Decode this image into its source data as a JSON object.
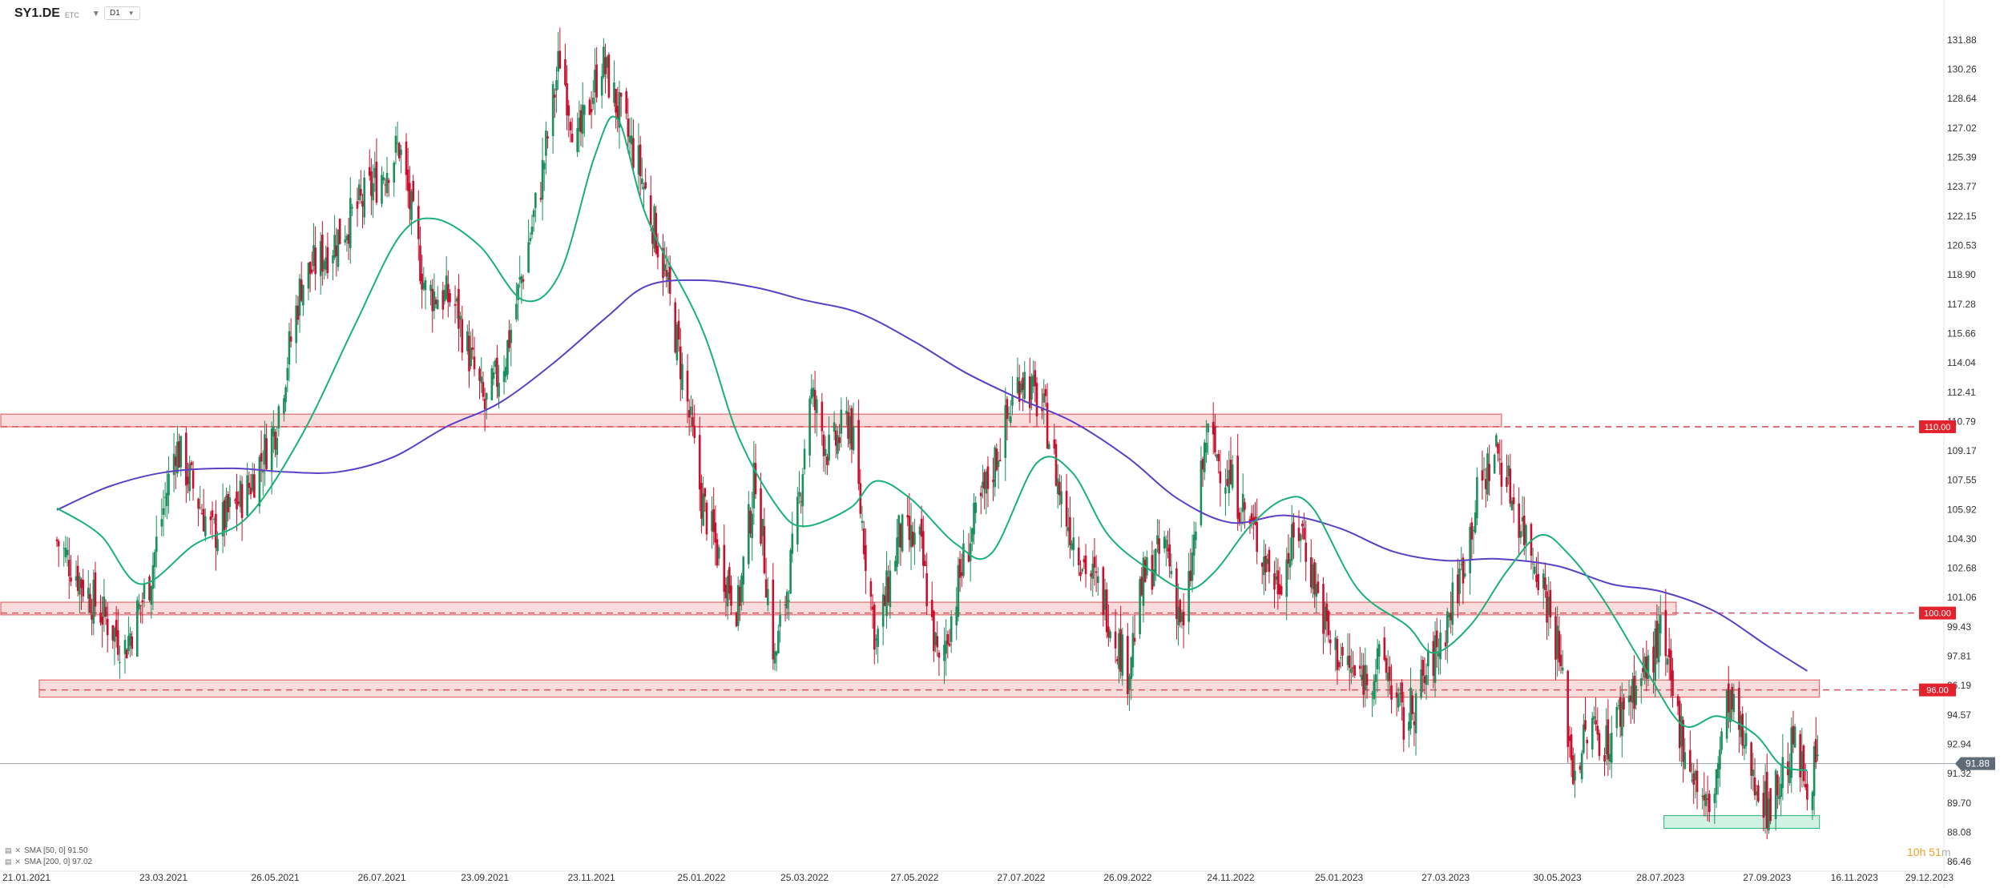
{
  "header": {
    "symbol": "SY1.DE",
    "exchange": "ETC",
    "timeframe": "D1"
  },
  "indicators": [
    {
      "label": "SMA [50, 0] 91.50",
      "color": "#1ab07a"
    },
    {
      "label": "SMA [200, 0] 97.02",
      "color": "#5b3fc4"
    }
  ],
  "countdown": {
    "main": "10h 51",
    "unit": "m"
  },
  "colors": {
    "up": "#1a8f5c",
    "down": "#c8102e",
    "sma50": "#1ab07a",
    "sma200": "#5b3fc4",
    "zone_fill": "#f9d0d2",
    "zone_stroke": "#d9535a",
    "green_zone_fill": "#c6efdd",
    "green_zone_stroke": "#27b37b",
    "level_label": "#e2232e",
    "price_label": "#5f6b77"
  },
  "chart_data": {
    "type": "candlestick",
    "y_axis_ticks": [
      "131.88",
      "130.26",
      "128.64",
      "127.02",
      "125.39",
      "123.77",
      "122.15",
      "120.53",
      "118.90",
      "117.28",
      "115.66",
      "114.04",
      "112.41",
      "110.79",
      "109.17",
      "107.55",
      "105.92",
      "104.30",
      "102.68",
      "101.06",
      "99.43",
      "97.81",
      "96.19",
      "94.57",
      "92.94",
      "91.32",
      "89.70",
      "88.08",
      "86.46"
    ],
    "ylim": [
      86.46,
      131.88
    ],
    "x_axis_labels": [
      "21.01.2021",
      "23.03.2021",
      "26.05.2021",
      "26.07.2021",
      "23.09.2021",
      "23.11.2021",
      "25.01.2022",
      "25.03.2022",
      "27.05.2022",
      "27.07.2022",
      "26.09.2022",
      "24.11.2022",
      "25.01.2023",
      "27.03.2023",
      "30.05.2023",
      "28.07.2023",
      "27.09.2023",
      "16.11.2023",
      "29.12.2023"
    ],
    "x_axis_ticks": [
      "2021-01-21",
      "2021-03-23",
      "2021-05-26",
      "2021-07-26",
      "2021-09-23",
      "2021-11-23",
      "2022-01-25",
      "2022-03-25",
      "2022-05-27",
      "2022-07-27",
      "2022-09-26",
      "2022-11-24",
      "2023-01-25",
      "2023-03-27",
      "2023-05-30",
      "2023-07-28",
      "2023-09-27",
      "2023-11-16",
      "2023-12-29"
    ],
    "last_price": "91.88",
    "close_path": [
      [
        "2021-01-21",
        104.2
      ],
      [
        "2021-02-10",
        101.0
      ],
      [
        "2021-03-01",
        98.3
      ],
      [
        "2021-03-15",
        102.0
      ],
      [
        "2021-03-30",
        109.5
      ],
      [
        "2021-04-20",
        104.5
      ],
      [
        "2021-05-10",
        107.0
      ],
      [
        "2021-05-26",
        110.5
      ],
      [
        "2021-06-10",
        118.5
      ],
      [
        "2021-07-01",
        121.0
      ],
      [
        "2021-07-26",
        124.5
      ],
      [
        "2021-08-05",
        126.0
      ],
      [
        "2021-08-20",
        118.0
      ],
      [
        "2021-09-05",
        117.5
      ],
      [
        "2021-09-23",
        111.5
      ],
      [
        "2021-10-05",
        114.5
      ],
      [
        "2021-10-25",
        124.0
      ],
      [
        "2021-11-05",
        131.0
      ],
      [
        "2021-11-15",
        126.0
      ],
      [
        "2021-11-29",
        130.8
      ],
      [
        "2021-12-10",
        127.5
      ],
      [
        "2021-12-20",
        125.0
      ],
      [
        "2022-01-03",
        119.5
      ],
      [
        "2022-01-15",
        113.0
      ],
      [
        "2022-01-25",
        106.5
      ],
      [
        "2022-02-05",
        103.0
      ],
      [
        "2022-02-15",
        100.5
      ],
      [
        "2022-02-25",
        108.0
      ],
      [
        "2022-03-08",
        97.5
      ],
      [
        "2022-03-20",
        104.5
      ],
      [
        "2022-03-28",
        112.5
      ],
      [
        "2022-04-08",
        109.0
      ],
      [
        "2022-04-20",
        111.0
      ],
      [
        "2022-05-05",
        98.5
      ],
      [
        "2022-05-18",
        104.5
      ],
      [
        "2022-05-30",
        104.0
      ],
      [
        "2022-06-10",
        97.0
      ],
      [
        "2022-06-25",
        103.5
      ],
      [
        "2022-07-10",
        108.0
      ],
      [
        "2022-07-27",
        113.5
      ],
      [
        "2022-08-10",
        111.0
      ],
      [
        "2022-08-20",
        106.0
      ],
      [
        "2022-09-01",
        103.0
      ],
      [
        "2022-09-12",
        101.0
      ],
      [
        "2022-09-26",
        97.0
      ],
      [
        "2022-10-05",
        102.0
      ],
      [
        "2022-10-18",
        104.0
      ],
      [
        "2022-10-28",
        99.0
      ],
      [
        "2022-11-10",
        110.0
      ],
      [
        "2022-11-24",
        107.5
      ],
      [
        "2022-12-08",
        104.5
      ],
      [
        "2022-12-20",
        101.8
      ],
      [
        "2023-01-03",
        105.0
      ],
      [
        "2023-01-20",
        98.5
      ],
      [
        "2023-02-05",
        96.5
      ],
      [
        "2023-02-20",
        97.5
      ],
      [
        "2023-03-03",
        94.0
      ],
      [
        "2023-03-15",
        96.5
      ],
      [
        "2023-03-27",
        99.5
      ],
      [
        "2023-04-05",
        102.5
      ],
      [
        "2023-04-15",
        107.0
      ],
      [
        "2023-04-25",
        109.3
      ],
      [
        "2023-05-08",
        105.5
      ],
      [
        "2023-05-20",
        102.5
      ],
      [
        "2023-05-30",
        98.5
      ],
      [
        "2023-06-08",
        91.5
      ],
      [
        "2023-06-18",
        94.0
      ],
      [
        "2023-06-28",
        93.0
      ],
      [
        "2023-07-08",
        95.5
      ],
      [
        "2023-07-20",
        97.0
      ],
      [
        "2023-07-28",
        99.0
      ],
      [
        "2023-08-05",
        95.0
      ],
      [
        "2023-08-15",
        91.5
      ],
      [
        "2023-08-25",
        89.0
      ],
      [
        "2023-09-05",
        95.5
      ],
      [
        "2023-09-15",
        92.5
      ],
      [
        "2023-09-27",
        89.5
      ],
      [
        "2023-10-05",
        91.0
      ],
      [
        "2023-10-12",
        93.0
      ],
      [
        "2023-10-19",
        91.0
      ],
      [
        "2023-10-26",
        91.88
      ]
    ],
    "candle_seed": 7,
    "sma50_path": [
      [
        "2021-01-21",
        106.0
      ],
      [
        "2021-02-15",
        104.5
      ],
      [
        "2021-03-10",
        101.8
      ],
      [
        "2021-04-10",
        104.0
      ],
      [
        "2021-05-10",
        105.5
      ],
      [
        "2021-06-10",
        110.0
      ],
      [
        "2021-07-10",
        116.0
      ],
      [
        "2021-08-05",
        121.0
      ],
      [
        "2021-08-25",
        122.0
      ],
      [
        "2021-09-20",
        120.5
      ],
      [
        "2021-10-15",
        117.5
      ],
      [
        "2021-11-05",
        119.0
      ],
      [
        "2021-11-25",
        125.5
      ],
      [
        "2021-12-08",
        127.5
      ],
      [
        "2021-12-25",
        122.0
      ],
      [
        "2022-01-25",
        116.0
      ],
      [
        "2022-02-15",
        110.0
      ],
      [
        "2022-03-10",
        106.0
      ],
      [
        "2022-03-25",
        105.0
      ],
      [
        "2022-04-20",
        106.0
      ],
      [
        "2022-05-05",
        107.5
      ],
      [
        "2022-05-25",
        106.5
      ],
      [
        "2022-06-20",
        104.0
      ],
      [
        "2022-07-10",
        103.5
      ],
      [
        "2022-08-05",
        108.5
      ],
      [
        "2022-08-25",
        108.0
      ],
      [
        "2022-09-15",
        104.5
      ],
      [
        "2022-10-10",
        102.5
      ],
      [
        "2022-10-30",
        101.5
      ],
      [
        "2022-11-15",
        102.5
      ],
      [
        "2022-12-05",
        105.0
      ],
      [
        "2022-12-25",
        106.5
      ],
      [
        "2023-01-10",
        106.0
      ],
      [
        "2023-02-05",
        101.5
      ],
      [
        "2023-03-05",
        99.5
      ],
      [
        "2023-03-20",
        98.0
      ],
      [
        "2023-04-10",
        99.5
      ],
      [
        "2023-05-01",
        102.5
      ],
      [
        "2023-05-20",
        104.5
      ],
      [
        "2023-06-05",
        103.5
      ],
      [
        "2023-06-25",
        101.0
      ],
      [
        "2023-07-20",
        97.0
      ],
      [
        "2023-08-10",
        94.0
      ],
      [
        "2023-08-30",
        94.5
      ],
      [
        "2023-09-20",
        93.5
      ],
      [
        "2023-10-05",
        91.8
      ],
      [
        "2023-10-20",
        91.5
      ]
    ],
    "sma200_path": [
      [
        "2021-01-21",
        105.9
      ],
      [
        "2021-02-20",
        107.2
      ],
      [
        "2021-03-25",
        108.0
      ],
      [
        "2021-05-01",
        108.2
      ],
      [
        "2021-06-01",
        108.0
      ],
      [
        "2021-07-01",
        108.0
      ],
      [
        "2021-08-01",
        108.8
      ],
      [
        "2021-09-01",
        110.5
      ],
      [
        "2021-10-01",
        111.8
      ],
      [
        "2021-11-01",
        114.0
      ],
      [
        "2021-12-01",
        116.5
      ],
      [
        "2021-12-25",
        118.3
      ],
      [
        "2022-01-25",
        118.6
      ],
      [
        "2022-02-25",
        118.2
      ],
      [
        "2022-03-25",
        117.5
      ],
      [
        "2022-04-25",
        116.8
      ],
      [
        "2022-05-27",
        115.2
      ],
      [
        "2022-06-25",
        113.5
      ],
      [
        "2022-07-27",
        112.0
      ],
      [
        "2022-08-25",
        110.8
      ],
      [
        "2022-09-26",
        108.8
      ],
      [
        "2022-10-25",
        106.5
      ],
      [
        "2022-11-24",
        105.2
      ],
      [
        "2022-12-25",
        105.6
      ],
      [
        "2023-01-25",
        104.9
      ],
      [
        "2023-02-25",
        103.6
      ],
      [
        "2023-03-27",
        103.1
      ],
      [
        "2023-04-25",
        103.2
      ],
      [
        "2023-05-30",
        102.8
      ],
      [
        "2023-06-30",
        101.8
      ],
      [
        "2023-07-28",
        101.4
      ],
      [
        "2023-08-28",
        100.3
      ],
      [
        "2023-09-27",
        98.4
      ],
      [
        "2023-10-20",
        97.0
      ]
    ],
    "resistance_zones": [
      {
        "from": "2021-01-21",
        "to": "2023-04-28",
        "low": 110.5,
        "high": 111.2,
        "level": "110.00",
        "level_value": 110.5
      },
      {
        "from": "2021-01-21",
        "to": "2023-08-06",
        "low": 100.1,
        "high": 100.8,
        "level": "100.00",
        "level_value": 100.2
      },
      {
        "from": "2021-02-12",
        "to": "2023-10-27",
        "low": 95.55,
        "high": 96.5,
        "level": "96.00",
        "level_value": 95.95
      }
    ],
    "support_zone": {
      "from": "2023-07-30",
      "to": "2023-10-27",
      "low": 88.3,
      "high": 89.0
    },
    "grid": false,
    "legend_position": "bottom-left"
  }
}
